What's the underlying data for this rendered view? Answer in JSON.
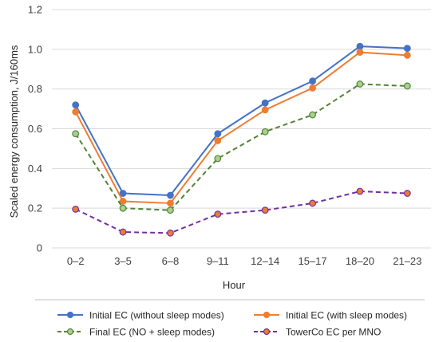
{
  "chart_data": {
    "type": "line",
    "title": "",
    "xlabel": "Hour",
    "ylabel": "Scaled energy consumption, J/160ms",
    "categories": [
      "0–2",
      "3–5",
      "6–8",
      "9–11",
      "12–14",
      "15–17",
      "18–20",
      "21–23"
    ],
    "ylim": [
      0,
      1.2
    ],
    "yticks": [
      "0",
      "0.2",
      "0.4",
      "0.6",
      "0.8",
      "1.0",
      "1.2"
    ],
    "grid": "horizontal",
    "legend_position": "bottom",
    "series": [
      {
        "name": "Initial EC (without sleep modes)",
        "values": [
          0.72,
          0.275,
          0.265,
          0.575,
          0.73,
          0.84,
          1.015,
          1.005
        ],
        "color": "#4472C4",
        "dash": "solid",
        "marker": "circle"
      },
      {
        "name": "Initial EC (with sleep modes)",
        "values": [
          0.685,
          0.235,
          0.225,
          0.54,
          0.695,
          0.805,
          0.985,
          0.97
        ],
        "color": "#ED7D31",
        "dash": "solid",
        "marker": "circle"
      },
      {
        "name": "Final EC (NO + sleep modes)",
        "values": [
          0.575,
          0.2,
          0.19,
          0.45,
          0.585,
          0.67,
          0.825,
          0.815
        ],
        "color": "#548235",
        "dash": "dashed",
        "marker": "circle",
        "marker_fill": "#A9D18E"
      },
      {
        "name": "TowerCo EC per MNO",
        "values": [
          0.195,
          0.08,
          0.075,
          0.17,
          0.19,
          0.225,
          0.285,
          0.275
        ],
        "color": "#7030A0",
        "dash": "dashed",
        "marker": "circle",
        "marker_fill": "#ED7D31"
      }
    ]
  }
}
